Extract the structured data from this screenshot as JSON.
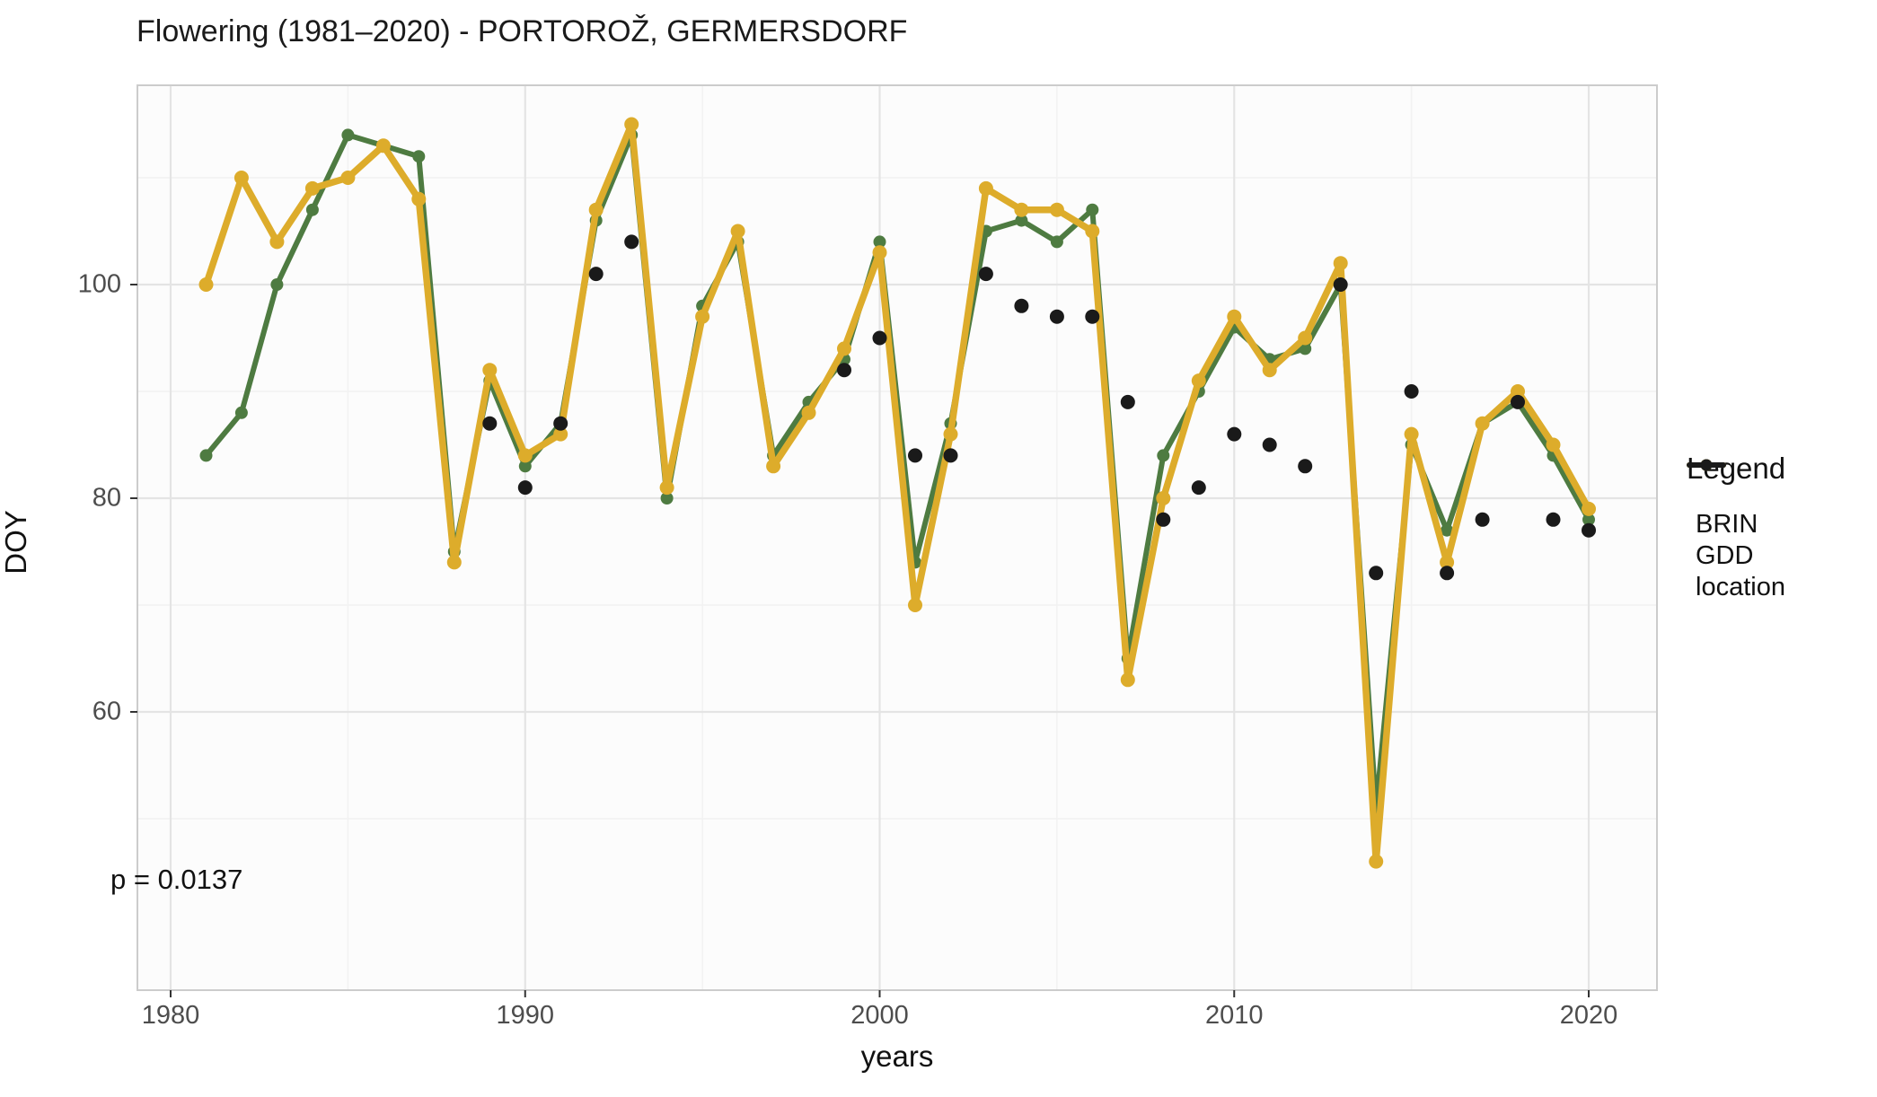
{
  "chart_data": {
    "type": "line",
    "title": "Flowering (1981–2020) - PORTOROŽ, GERMERSDORF",
    "xlabel": "years",
    "ylabel": "DOY",
    "annotation": "p = 0.0137",
    "x_ticks": [
      1980,
      1990,
      2000,
      2010,
      2020
    ],
    "x_tick_labels": [
      "1980",
      "1990",
      "2000",
      "2010",
      "2020"
    ],
    "x_minor": [
      1985,
      1995,
      2005,
      2015
    ],
    "y_ticks": [
      60,
      80,
      100
    ],
    "y_tick_labels": [
      "60",
      "80",
      "100"
    ],
    "y_minor": [
      50,
      70,
      90,
      110
    ],
    "xlim": [
      1979.1,
      2021.9
    ],
    "ylim": [
      34,
      118.7
    ],
    "grid": true,
    "legend_position": "right",
    "years": [
      1981,
      1982,
      1983,
      1984,
      1985,
      1986,
      1987,
      1988,
      1989,
      1990,
      1991,
      1992,
      1993,
      1994,
      1995,
      1996,
      1997,
      1998,
      1999,
      2000,
      2001,
      2002,
      2003,
      2004,
      2005,
      2006,
      2007,
      2008,
      2009,
      2010,
      2011,
      2012,
      2013,
      2014,
      2015,
      2016,
      2017,
      2018,
      2019,
      2020
    ],
    "series": [
      {
        "name": "BRIN",
        "style": "line-with-points",
        "color": "#4e7b41",
        "values": [
          84,
          88,
          100,
          107,
          114,
          113,
          112,
          75,
          91,
          83,
          87,
          106,
          114,
          80,
          98,
          104,
          84,
          89,
          93,
          104,
          74,
          87,
          105,
          106,
          104,
          107,
          65,
          84,
          90,
          96,
          93,
          94,
          100,
          51,
          85,
          77,
          87,
          89,
          84,
          78
        ]
      },
      {
        "name": "GDD",
        "style": "line-with-points",
        "color": "#ddac2b",
        "values": [
          100,
          110,
          104,
          109,
          110,
          113,
          108,
          74,
          92,
          84,
          86,
          107,
          115,
          81,
          97,
          105,
          83,
          88,
          94,
          103,
          70,
          86,
          109,
          107,
          107,
          105,
          63,
          80,
          91,
          97,
          92,
          95,
          102,
          46,
          86,
          74,
          87,
          90,
          85,
          79
        ]
      },
      {
        "name": "location",
        "style": "points",
        "color": "#1a1a1a",
        "values": [
          null,
          null,
          null,
          null,
          null,
          null,
          null,
          null,
          87,
          81,
          87,
          101,
          104,
          null,
          null,
          null,
          null,
          null,
          92,
          95,
          84,
          84,
          101,
          98,
          97,
          97,
          89,
          78,
          81,
          86,
          85,
          83,
          100,
          73,
          90,
          73,
          78,
          89,
          78,
          77
        ]
      }
    ]
  },
  "legend": {
    "title": "Legend",
    "items": [
      {
        "label": "BRIN",
        "color": "#4e7b41"
      },
      {
        "label": "GDD",
        "color": "#ddac2b"
      },
      {
        "label": "location",
        "color": "#1a1a1a"
      }
    ]
  },
  "colors": {
    "background": "#ffffff",
    "panel_fill": "#fcfcfc",
    "panel_border": "#cccccc",
    "grid_major": "#e4e4e4",
    "grid_minor": "#f2f2f2",
    "tick_mark": "#333333",
    "tick_text": "#4d4d4d"
  }
}
